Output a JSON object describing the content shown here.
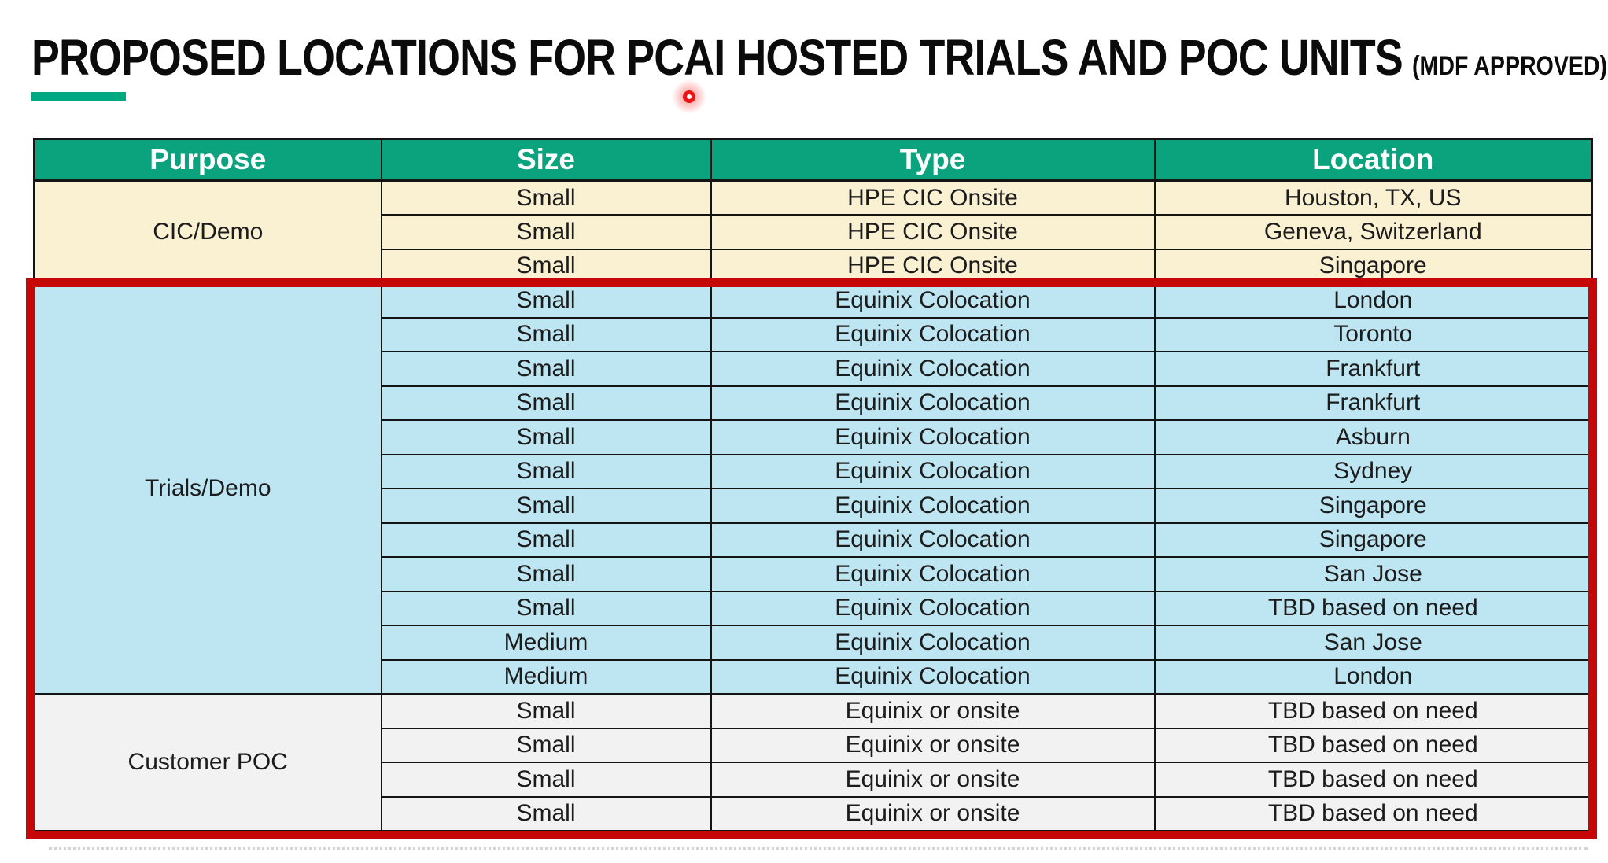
{
  "title": {
    "main": "PROPOSED LOCATIONS FOR PCAI HOSTED TRIALS AND POC UNITS",
    "suffix": "(MDF APPROVED)"
  },
  "colors": {
    "header_bg": "#0AA37E",
    "accent_bar": "#01A982",
    "highlight_border": "#C50707",
    "section_cic_bg": "#FAF0D2",
    "section_trials_bg": "#BEE6F2",
    "section_poc_bg": "#F2F2F2",
    "laser_dot": "#EA1414"
  },
  "table": {
    "headers": [
      "Purpose",
      "Size",
      "Type",
      "Location"
    ],
    "sections": [
      {
        "purpose": "CIC/Demo",
        "bg": "#FAF0D2",
        "highlighted": false,
        "rows": [
          {
            "size": "Small",
            "type": "HPE CIC Onsite",
            "location": "Houston, TX, US"
          },
          {
            "size": "Small",
            "type": "HPE CIC Onsite",
            "location": "Geneva, Switzerland"
          },
          {
            "size": "Small",
            "type": "HPE CIC Onsite",
            "location": "Singapore"
          }
        ]
      },
      {
        "purpose": "Trials/Demo",
        "bg": "#BEE6F2",
        "highlighted": true,
        "rows": [
          {
            "size": "Small",
            "type": "Equinix Colocation",
            "location": "London"
          },
          {
            "size": "Small",
            "type": "Equinix Colocation",
            "location": "Toronto"
          },
          {
            "size": "Small",
            "type": "Equinix Colocation",
            "location": "Frankfurt"
          },
          {
            "size": "Small",
            "type": "Equinix Colocation",
            "location": "Frankfurt"
          },
          {
            "size": "Small",
            "type": "Equinix Colocation",
            "location": "Asburn"
          },
          {
            "size": "Small",
            "type": "Equinix Colocation",
            "location": "Sydney"
          },
          {
            "size": "Small",
            "type": "Equinix Colocation",
            "location": "Singapore"
          },
          {
            "size": "Small",
            "type": "Equinix Colocation",
            "location": "Singapore"
          },
          {
            "size": "Small",
            "type": "Equinix Colocation",
            "location": "San Jose"
          },
          {
            "size": "Small",
            "type": "Equinix Colocation",
            "location": "TBD based on need"
          },
          {
            "size": "Medium",
            "type": "Equinix Colocation",
            "location": "San Jose"
          },
          {
            "size": "Medium",
            "type": "Equinix Colocation",
            "location": "London"
          }
        ]
      },
      {
        "purpose": "Customer POC",
        "bg": "#F2F2F2",
        "highlighted": true,
        "rows": [
          {
            "size": "Small",
            "type": "Equinix or onsite",
            "location": "TBD based on need"
          },
          {
            "size": "Small",
            "type": "Equinix or onsite",
            "location": "TBD based on need"
          },
          {
            "size": "Small",
            "type": "Equinix or onsite",
            "location": "TBD based on need"
          },
          {
            "size": "Small",
            "type": "Equinix or onsite",
            "location": "TBD based on need"
          }
        ]
      }
    ]
  }
}
